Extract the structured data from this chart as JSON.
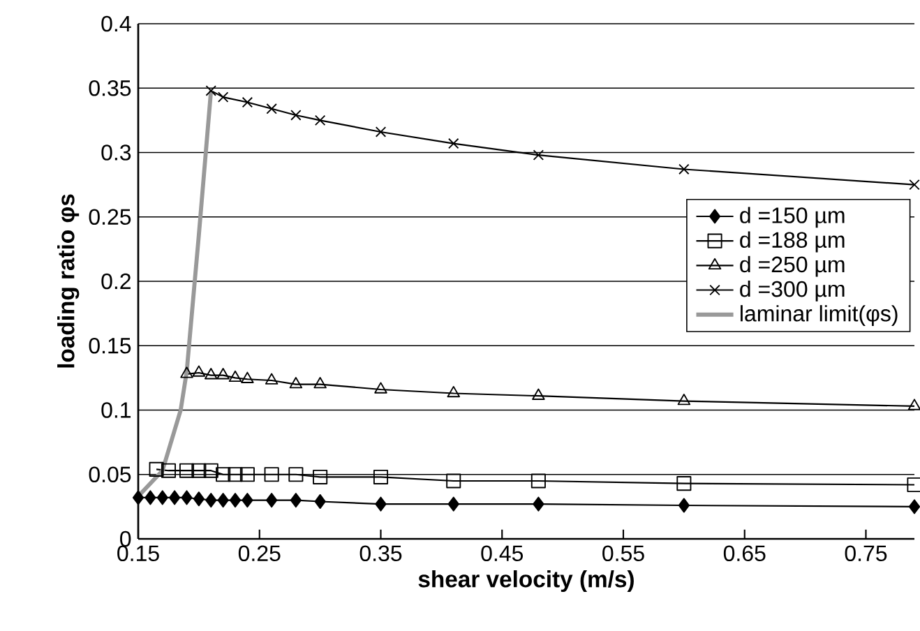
{
  "chart_data": {
    "type": "line",
    "xlabel": "shear velocity (m/s)",
    "ylabel": "loading ratio φs",
    "xlim": [
      0.15,
      0.79
    ],
    "ylim": [
      0,
      0.4
    ],
    "xticks": [
      0.15,
      0.25,
      0.35,
      0.45,
      0.55,
      0.65,
      0.75
    ],
    "yticks": [
      0,
      0.05,
      0.1,
      0.15,
      0.2,
      0.25,
      0.3,
      0.35,
      0.4
    ],
    "grid": "y",
    "legend": "right",
    "series": [
      {
        "name": "d =150 µm",
        "color": "#000000",
        "marker": "diamond",
        "x": [
          0.15,
          0.16,
          0.17,
          0.18,
          0.19,
          0.2,
          0.21,
          0.22,
          0.23,
          0.24,
          0.26,
          0.28,
          0.3,
          0.35,
          0.41,
          0.48,
          0.6,
          0.79
        ],
        "values": [
          0.032,
          0.032,
          0.032,
          0.032,
          0.032,
          0.031,
          0.03,
          0.03,
          0.03,
          0.03,
          0.03,
          0.03,
          0.029,
          0.027,
          0.027,
          0.027,
          0.026,
          0.025
        ]
      },
      {
        "name": "d =188 µm",
        "color": "#000000",
        "marker": "square",
        "x": [
          0.165,
          0.175,
          0.19,
          0.2,
          0.21,
          0.22,
          0.23,
          0.24,
          0.26,
          0.28,
          0.3,
          0.35,
          0.41,
          0.48,
          0.6,
          0.79
        ],
        "values": [
          0.054,
          0.053,
          0.053,
          0.053,
          0.053,
          0.05,
          0.05,
          0.05,
          0.05,
          0.05,
          0.048,
          0.048,
          0.045,
          0.045,
          0.043,
          0.042
        ]
      },
      {
        "name": "d =250 µm",
        "color": "#000000",
        "marker": "triangle",
        "x": [
          0.19,
          0.2,
          0.21,
          0.22,
          0.23,
          0.24,
          0.26,
          0.28,
          0.3,
          0.35,
          0.41,
          0.48,
          0.6,
          0.79
        ],
        "values": [
          0.128,
          0.129,
          0.127,
          0.127,
          0.125,
          0.124,
          0.123,
          0.12,
          0.12,
          0.116,
          0.113,
          0.111,
          0.107,
          0.103
        ]
      },
      {
        "name": "d =300 µm",
        "color": "#000000",
        "marker": "cross",
        "x": [
          0.21,
          0.22,
          0.24,
          0.26,
          0.28,
          0.3,
          0.35,
          0.41,
          0.48,
          0.6,
          0.79
        ],
        "values": [
          0.348,
          0.343,
          0.339,
          0.334,
          0.329,
          0.325,
          0.316,
          0.307,
          0.298,
          0.287,
          0.275
        ]
      },
      {
        "name": "laminar limit(φs)",
        "color": "#999999",
        "marker": "none",
        "x": [
          0.15,
          0.17,
          0.185,
          0.19,
          0.2,
          0.21
        ],
        "values": [
          0.033,
          0.053,
          0.1,
          0.13,
          0.236,
          0.348
        ]
      }
    ]
  }
}
